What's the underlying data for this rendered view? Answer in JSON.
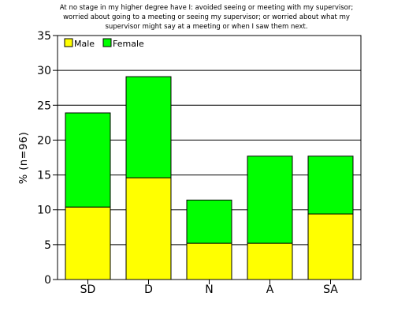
{
  "chart_data": {
    "type": "bar",
    "stacked": true,
    "title_lines": [
      "At no stage in my higher degree have I: avoided seeing or meeting with my supervisor;",
      "worried about going to a meeting or seeing my supervisor; or worried about what my",
      "supervisor might say at a meeting or when I saw them next."
    ],
    "xlabel": "",
    "ylabel": "% (n=96)",
    "ylim": [
      0,
      35
    ],
    "yticks": [
      0,
      5,
      10,
      15,
      20,
      25,
      30,
      35
    ],
    "grid": true,
    "legend_position": "top-left",
    "categories": [
      "SD",
      "D",
      "N",
      "A",
      "SA"
    ],
    "series": [
      {
        "name": "Male",
        "color": "#ffff00",
        "values": [
          10.4,
          14.6,
          5.2,
          5.2,
          9.4
        ]
      },
      {
        "name": "Female",
        "color": "#00ff00",
        "values": [
          13.5,
          14.5,
          6.2,
          12.5,
          8.3
        ]
      }
    ]
  }
}
